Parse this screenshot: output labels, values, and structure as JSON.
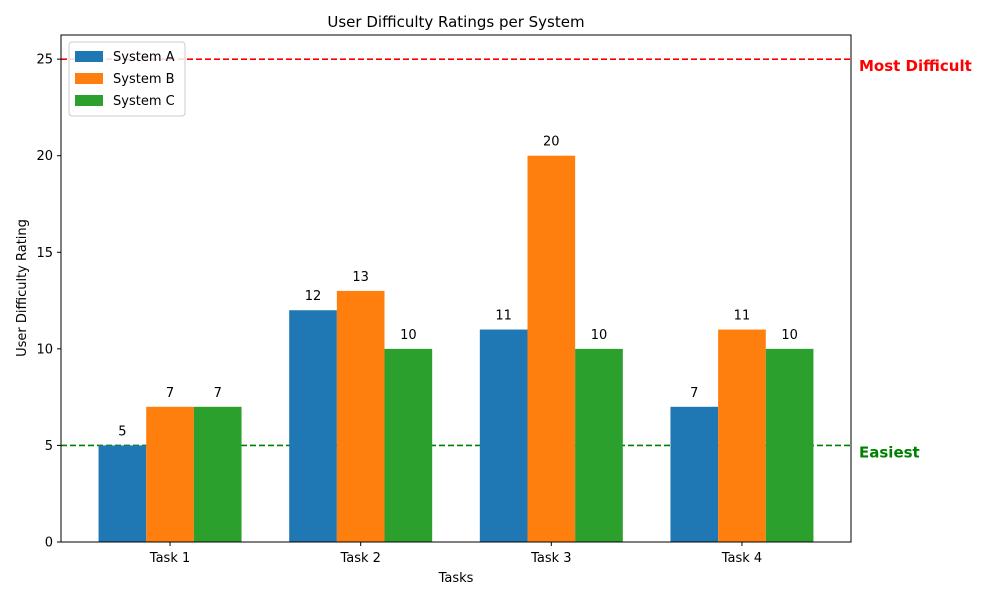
{
  "chart_data": {
    "type": "bar",
    "title": "User Difficulty Ratings per System",
    "xlabel": "Tasks",
    "ylabel": "User Difficulty Rating",
    "categories": [
      "Task 1",
      "Task 2",
      "Task 3",
      "Task 4"
    ],
    "series": [
      {
        "name": "System A",
        "color": "#1f77b4",
        "values": [
          5,
          12,
          11,
          7
        ]
      },
      {
        "name": "System B",
        "color": "#ff7f0e",
        "values": [
          7,
          13,
          20,
          11
        ]
      },
      {
        "name": "System C",
        "color": "#2ca02c",
        "values": [
          7,
          10,
          10,
          10
        ]
      }
    ],
    "ylim": [
      0,
      26.25
    ],
    "yticks": [
      0,
      5,
      10,
      15,
      20,
      25
    ],
    "grid": false,
    "legend_position": "top-left",
    "reference_lines": [
      {
        "value": 25,
        "label": "Most Difficult",
        "color": "#ff0000",
        "style": "dashed"
      },
      {
        "value": 5,
        "label": "Easiest",
        "color": "#008000",
        "style": "dashed"
      }
    ]
  }
}
